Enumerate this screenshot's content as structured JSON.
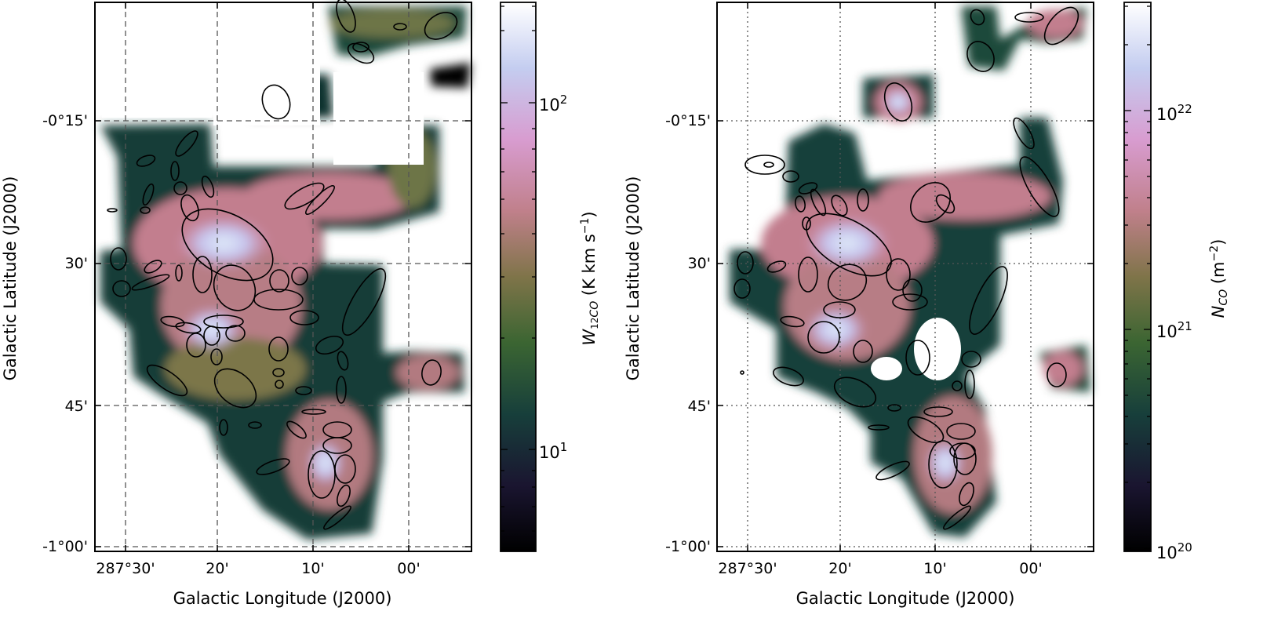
{
  "chart_data": [
    {
      "type": "heatmap",
      "panel": "left",
      "xlabel": "Galactic Longitude (J2000)",
      "ylabel": "Galactic Latitude (J2000)",
      "x_ticks": [
        "287°30'",
        "20'",
        "10'",
        "00'"
      ],
      "y_ticks": [
        "-0°15'",
        "30'",
        "45'",
        "-1°00'"
      ],
      "grid": "dashed",
      "colormap": "cubehelix",
      "colorbar": {
        "label": "W12CO (K km s−1)",
        "label_parts": {
          "main": "W",
          "sup": "12",
          "sub": "CO",
          "unit": " (K km s",
          "unit_sup": "−1",
          "unit_end": ")"
        },
        "scale": "log",
        "range": [
          4,
          200
        ],
        "ticks": [
          {
            "value": 10,
            "base": "10",
            "exp": "1"
          },
          {
            "value": 100,
            "base": "10",
            "exp": "2"
          }
        ]
      },
      "annotations": "black ellipses marking identified clumps"
    },
    {
      "type": "heatmap",
      "panel": "right",
      "xlabel": "Galactic Longitude (J2000)",
      "ylabel": "Galactic Latitude (J2000)",
      "x_ticks": [
        "287°30'",
        "20'",
        "10'",
        "00'"
      ],
      "y_ticks": [
        "-0°15'",
        "30'",
        "45'",
        "-1°00'"
      ],
      "grid": "dotted",
      "colormap": "cubehelix",
      "colorbar": {
        "label": "NCO (m−2)",
        "label_parts": {
          "main": "N",
          "sub": "CO",
          "unit": " (m",
          "unit_sup": "−2",
          "unit_end": ")"
        },
        "scale": "log",
        "range": [
          1e+20,
          3e+22
        ],
        "ticks": [
          {
            "value": 1e+20,
            "base": "10",
            "exp": "20"
          },
          {
            "value": 1e+21,
            "base": "10",
            "exp": "21"
          },
          {
            "value": 1e+22,
            "base": "10",
            "exp": "22"
          }
        ]
      },
      "annotations": "black ellipses marking identified clumps"
    }
  ],
  "colors": {
    "cubehelix_stops": [
      "#000000",
      "#1a1530",
      "#173f3b",
      "#3b6532",
      "#7f7449",
      "#c0808b",
      "#d89cd0",
      "#c4cdf0",
      "#ffffff"
    ]
  }
}
